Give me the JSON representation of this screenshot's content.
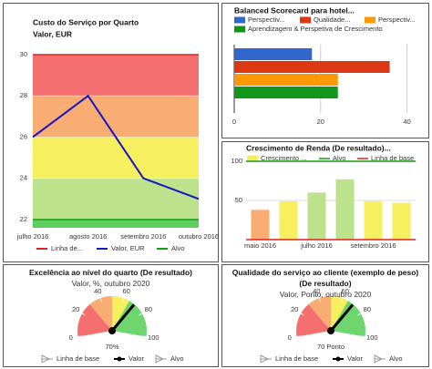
{
  "chart_data": [
    {
      "type": "line",
      "title": "Custo do Serviço por Quarto",
      "subtitle": "Valor, EUR",
      "categories": [
        "julho 2016",
        "agosto 2016",
        "setembro 2016",
        "outubro 2016"
      ],
      "series": [
        {
          "name": "Linha de...",
          "color": "#e02020",
          "values": [
            30,
            30,
            30,
            30
          ]
        },
        {
          "name": "Valor, EUR",
          "color": "#1515c8",
          "values": [
            26,
            28,
            24,
            23
          ]
        },
        {
          "name": "Alvo",
          "color": "#14a014",
          "values": [
            22,
            22,
            22,
            22
          ]
        }
      ],
      "bands": [
        {
          "from": 28,
          "to": 30,
          "color": "#f47070"
        },
        {
          "from": 26,
          "to": 28,
          "color": "#f9ad72"
        },
        {
          "from": 24,
          "to": 26,
          "color": "#f6ef5e"
        },
        {
          "from": 22,
          "to": 24,
          "color": "#bce38c"
        },
        {
          "from": 21.6,
          "to": 22,
          "color": "#5ccf5c"
        }
      ],
      "ylim": [
        21.6,
        30
      ],
      "yticks": [
        22,
        24,
        26,
        28,
        30
      ],
      "legend": "bottom"
    },
    {
      "type": "hbar",
      "title": "Balanced Scorecard para hotel...",
      "series": [
        {
          "name": "Perspectiv...",
          "color": "#3366cc",
          "values": [
            18
          ]
        },
        {
          "name": "Qualidade...",
          "color": "#dc3912",
          "values": [
            36
          ]
        },
        {
          "name": "Perspectiv...",
          "color": "#ff9900",
          "values": [
            24
          ]
        },
        {
          "name": "Aprendizagem & Perspetiva de Crescimento",
          "color": "#109618",
          "values": [
            24
          ]
        }
      ],
      "xlim": [
        0,
        42
      ],
      "xticks": [
        0,
        20,
        40
      ],
      "grid": true,
      "legend": "top"
    },
    {
      "type": "vbar",
      "title": "Crescimento de Renda (De resultado)...",
      "categories": [
        "maio 2016",
        null,
        "julho 2016",
        null,
        "setembro 2016",
        null
      ],
      "series": [
        {
          "name": "Crescimento ...",
          "color": "#f6ef5e",
          "values": [
            38,
            49,
            60,
            77,
            49,
            47
          ],
          "colors": [
            "#f9ad72",
            "#f6ef5e",
            "#bce38c",
            "#bce38c",
            "#f6ef5e",
            "#f6ef5e"
          ]
        },
        {
          "name": "Alvo",
          "color": "#14a014",
          "values": [
            100,
            100,
            100,
            100,
            100,
            100
          ]
        },
        {
          "name": "Linha de base",
          "color": "#e02020",
          "values": [
            0,
            0,
            0,
            0,
            0,
            0
          ]
        }
      ],
      "ylim": [
        0,
        100
      ],
      "yticks": [
        50,
        100
      ],
      "grid": true,
      "legend": "top"
    },
    {
      "type": "gauge",
      "title": "Excelência ao nível do quarto (De resultado)",
      "subtitle": "Valor, %, outubro 2020",
      "values": [
        70
      ],
      "value_labels": [
        "70%"
      ],
      "ylim": [
        0,
        100
      ],
      "yticks": [
        0,
        20,
        40,
        60,
        80,
        100
      ],
      "bands": [
        {
          "from": 0,
          "to": 30,
          "color": "#f47070"
        },
        {
          "from": 30,
          "to": 50,
          "color": "#f9ad72"
        },
        {
          "from": 50,
          "to": 65,
          "color": "#f6ef5e"
        },
        {
          "from": 65,
          "to": 100,
          "color": "#6fd66f"
        }
      ],
      "legend_entries": [
        "Linha de base",
        "Valor",
        "Alvo"
      ]
    },
    {
      "type": "gauge",
      "title": "Qualidade do serviço ao cliente (exemplo de peso) (De resultado)",
      "subtitle": "Valor, Ponto, outubro 2020",
      "values": [
        70
      ],
      "value_labels": [
        "70 Ponto"
      ],
      "ylim": [
        0,
        100
      ],
      "yticks": [
        0,
        20,
        40,
        60,
        80,
        100
      ],
      "bands": [
        {
          "from": 0,
          "to": 30,
          "color": "#f47070"
        },
        {
          "from": 30,
          "to": 50,
          "color": "#f9ad72"
        },
        {
          "from": 50,
          "to": 65,
          "color": "#f6ef5e"
        },
        {
          "from": 65,
          "to": 100,
          "color": "#6fd66f"
        }
      ],
      "legend_entries": [
        "Linha de base",
        "Valor",
        "Alvo"
      ]
    }
  ]
}
